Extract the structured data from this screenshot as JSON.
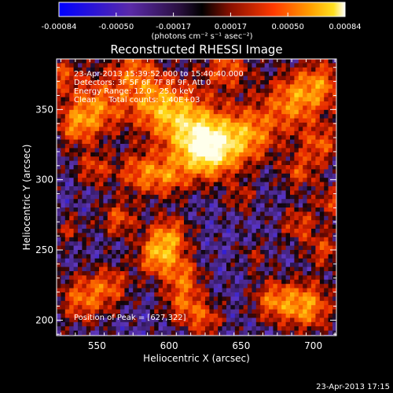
{
  "colorbar": {
    "tick_labels": [
      "-0.00084",
      "-0.00050",
      "-0.00017",
      "0.00017",
      "0.00050",
      "0.00084"
    ],
    "units_label": "(photons cm⁻² s⁻¹ asec⁻²)"
  },
  "image": {
    "title": "Reconstructed RHESSI Image",
    "time_range": "23-Apr-2013 15:39:52.000 to 15:40:40.000",
    "detectors": "Detectors: 3F 5F 6F 7F 8F 9F, Att 0",
    "energy_range": "Energy Range: 12.0 - 25.0 keV",
    "clean_counts": "Clean     Total counts: 1.40E+03",
    "peak_position": "Position of Peak = [627,322]"
  },
  "axes": {
    "x_label": "Heliocentric X (arcsec)",
    "y_label": "Heliocentric Y (arcsec)",
    "x_ticks": [
      "550",
      "600",
      "650",
      "700"
    ],
    "y_ticks": [
      "200",
      "250",
      "300",
      "350"
    ],
    "x_tick_values": [
      550,
      600,
      650,
      700
    ],
    "y_tick_values": [
      200,
      250,
      300,
      350
    ],
    "x_range": [
      522,
      716
    ],
    "y_range": [
      189,
      386
    ]
  },
  "footer": {
    "timestamp": "23-Apr-2013 17:15"
  },
  "colors": {
    "background": "#000000",
    "foreground": "#ffffff",
    "colormap": [
      "#0000ff",
      "#3b1a8a",
      "#6a36b0",
      "#000000",
      "#8a1000",
      "#ff3000",
      "#ff9a00",
      "#ffd800",
      "#ffffff"
    ]
  }
}
